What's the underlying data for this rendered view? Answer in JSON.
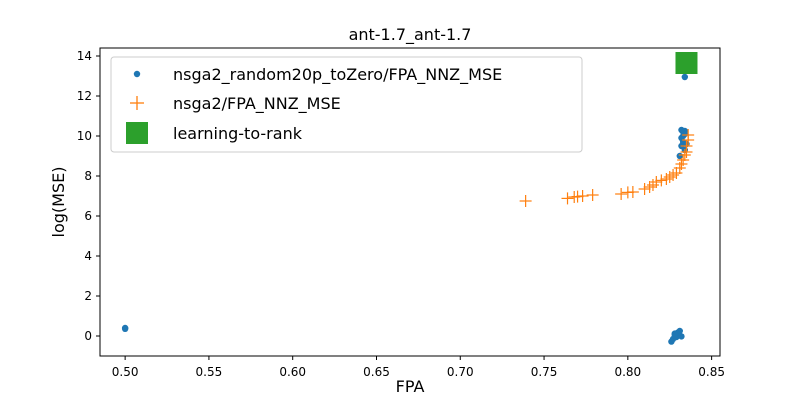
{
  "chart_data": {
    "type": "scatter",
    "title": "ant-1.7_ant-1.7",
    "xlabel": "FPA",
    "ylabel": "log(MSE)",
    "xlim": [
      0.485,
      0.855
    ],
    "ylim": [
      -1.0,
      14.4
    ],
    "xticks": [
      0.5,
      0.55,
      0.6,
      0.65,
      0.7,
      0.75,
      0.8,
      0.85
    ],
    "xtick_labels": [
      "0.50",
      "0.55",
      "0.60",
      "0.65",
      "0.70",
      "0.75",
      "0.80",
      "0.85"
    ],
    "yticks": [
      0,
      2,
      4,
      6,
      8,
      10,
      12,
      14
    ],
    "ytick_labels": [
      "0",
      "2",
      "4",
      "6",
      "8",
      "10",
      "12",
      "14"
    ],
    "grid": false,
    "legend_position": "top-left",
    "series": [
      {
        "name": "nsga2_random20p_toZero/FPA_NNZ_MSE",
        "marker": "circle",
        "color": "#1f77b4",
        "points": [
          [
            0.5,
            0.4
          ],
          [
            0.5,
            0.36
          ],
          [
            0.826,
            -0.28
          ],
          [
            0.827,
            -0.15
          ],
          [
            0.828,
            0.12
          ],
          [
            0.829,
            -0.05
          ],
          [
            0.83,
            0.18
          ],
          [
            0.831,
            0.25
          ],
          [
            0.832,
            -0.02
          ],
          [
            0.828,
            0.05
          ],
          [
            0.831,
            9.0
          ],
          [
            0.832,
            9.5
          ],
          [
            0.832,
            9.9
          ],
          [
            0.833,
            10.0
          ],
          [
            0.833,
            10.2
          ],
          [
            0.834,
            10.25
          ],
          [
            0.834,
            10.1
          ],
          [
            0.833,
            9.7
          ],
          [
            0.834,
            9.3
          ],
          [
            0.835,
            9.6
          ],
          [
            0.832,
            10.3
          ],
          [
            0.834,
            12.95
          ]
        ]
      },
      {
        "name": "nsga2/FPA_NNZ_MSE",
        "marker": "plus",
        "color": "#ff7f0e",
        "points": [
          [
            0.739,
            6.75
          ],
          [
            0.764,
            6.88
          ],
          [
            0.768,
            6.95
          ],
          [
            0.77,
            6.97
          ],
          [
            0.773,
            7.0
          ],
          [
            0.779,
            7.05
          ],
          [
            0.796,
            7.1
          ],
          [
            0.8,
            7.18
          ],
          [
            0.803,
            7.2
          ],
          [
            0.81,
            7.35
          ],
          [
            0.813,
            7.45
          ],
          [
            0.815,
            7.55
          ],
          [
            0.817,
            7.7
          ],
          [
            0.82,
            7.78
          ],
          [
            0.823,
            7.85
          ],
          [
            0.825,
            7.95
          ],
          [
            0.827,
            8.05
          ],
          [
            0.829,
            8.15
          ],
          [
            0.831,
            8.4
          ],
          [
            0.832,
            8.6
          ],
          [
            0.833,
            8.8
          ],
          [
            0.834,
            9.05
          ],
          [
            0.835,
            9.2
          ],
          [
            0.835,
            9.5
          ],
          [
            0.836,
            9.8
          ],
          [
            0.836,
            10.05
          ]
        ]
      },
      {
        "name": "learning-to-rank",
        "marker": "square",
        "color": "#2ca02c",
        "points": [
          [
            0.835,
            13.65
          ]
        ]
      }
    ]
  }
}
